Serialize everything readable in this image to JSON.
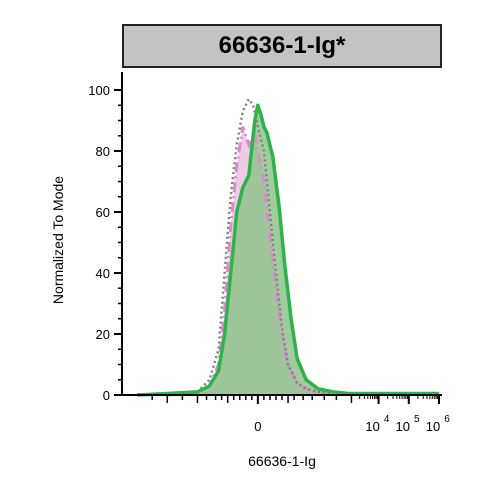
{
  "chart_data": {
    "type": "area",
    "title": "66636-1-Ig*",
    "xlabel": "66636-1-Ig",
    "ylabel": "Normalized To Mode",
    "ylim": [
      0,
      100
    ],
    "yticks": [
      0,
      20,
      40,
      60,
      80,
      100
    ],
    "xscale": "biexponential",
    "xtick_labels": [
      {
        "base": "0",
        "exp": ""
      },
      {
        "base": "10",
        "exp": "4"
      },
      {
        "base": "10",
        "exp": "5"
      },
      {
        "base": "10",
        "exp": "6"
      }
    ],
    "legend": "none",
    "grid": false,
    "colors": {
      "green": "#2db34a",
      "green_fill": "#8fc28c",
      "pink": "#d98cc9",
      "pink_fill": "#ebc6e2",
      "gray_dotted": "#808080"
    },
    "series": [
      {
        "style": "green solid, filled",
        "x": [
          -4,
          -3,
          -2,
          -1.6,
          -1.3,
          -1.1,
          -0.9,
          -0.7,
          -0.5,
          -0.3,
          -0.1,
          0,
          0.1,
          0.2,
          0.3,
          0.5,
          0.7,
          0.9,
          1.1,
          1.3,
          1.6,
          2,
          2.5,
          3,
          4,
          5,
          6
        ],
        "y": [
          0,
          0.5,
          1,
          3,
          8,
          20,
          40,
          60,
          68,
          72,
          90,
          95,
          92,
          88,
          86,
          78,
          62,
          42,
          25,
          12,
          5,
          2,
          1,
          0.5,
          0.5,
          0.5,
          0.5
        ]
      },
      {
        "style": "pink dash-dot, filled",
        "x": [
          -3,
          -2,
          -1.6,
          -1.3,
          -1.1,
          -0.9,
          -0.7,
          -0.5,
          -0.3,
          -0.1,
          0,
          0.2,
          0.4,
          0.6,
          0.8,
          1,
          1.3,
          1.6,
          2,
          2.5
        ],
        "y": [
          0,
          1,
          3,
          10,
          28,
          55,
          75,
          88,
          82,
          86,
          80,
          70,
          52,
          35,
          20,
          10,
          4,
          2,
          1,
          0.5
        ]
      },
      {
        "style": "gray dotted, unfilled",
        "x": [
          -3,
          -2,
          -1.6,
          -1.3,
          -1.1,
          -0.9,
          -0.7,
          -0.5,
          -0.3,
          -0.15,
          0,
          0.2,
          0.4,
          0.6,
          0.8,
          1,
          1.3,
          1.6,
          2,
          2.5
        ],
        "y": [
          0,
          1,
          5,
          15,
          40,
          65,
          82,
          93,
          97,
          95,
          88,
          80,
          60,
          40,
          22,
          10,
          4,
          2,
          1,
          0.5
        ]
      }
    ]
  }
}
